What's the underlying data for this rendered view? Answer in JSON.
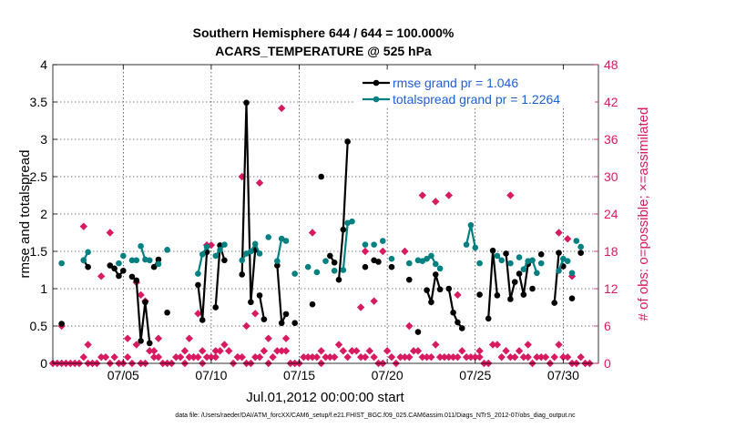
{
  "chart_data": {
    "type": "line",
    "title_line1": "Southern Hemisphere 644 / 644 = 100.000%",
    "title_line2": "ACARS_TEMPERATURE @ 525 hPa",
    "xlabel": "Jul.01,2012 00:00:00 start",
    "ylabel_left": "rmse and totalspread",
    "ylabel_right": "# of obs: o=possible; ×=assimilated",
    "footnote": "data file: /Users/raeder/DAI/ATM_forcXX/CAM6_setup/f.e21.FHIST_BGC.f09_025.CAM6assim.011/Diags_NTrS_2012-07/obs_diag_output.nc",
    "xlim": [
      1,
      32
    ],
    "ylim_left": [
      0,
      4
    ],
    "ylim_right": [
      0,
      48
    ],
    "x_ticks": [
      5,
      10,
      15,
      20,
      25,
      30
    ],
    "x_tick_labels": [
      "07/05",
      "07/10",
      "07/15",
      "07/20",
      "07/25",
      "07/30"
    ],
    "y_left_ticks": [
      "0",
      "0.5",
      "1",
      "1.5",
      "2",
      "2.5",
      "3",
      "3.5",
      "4"
    ],
    "y_right_ticks": [
      "0",
      "6",
      "12",
      "18",
      "24",
      "30",
      "36",
      "42",
      "48"
    ],
    "grid": true,
    "legend_position": "top-right",
    "colors": {
      "rmse": "#000000",
      "spread": "#008080",
      "obs": "#d81b60",
      "legend_text": "#1f5fd6",
      "right_axis": "#d81b60"
    },
    "series": [
      {
        "name": "rmse grand pr = 1.046",
        "key": "rmse",
        "segments": [
          [
            [
              1.5,
              0.53
            ]
          ],
          [
            [
              2.75,
              1.38
            ],
            [
              3.0,
              1.29
            ]
          ],
          [
            [
              4.25,
              1.31
            ],
            [
              4.5,
              1.27
            ],
            [
              4.75,
              1.17
            ],
            [
              5.0,
              1.24
            ]
          ],
          [
            [
              5.5,
              1.16
            ],
            [
              5.75,
              1.11
            ],
            [
              6.0,
              0.3
            ],
            [
              6.25,
              0.82
            ],
            [
              6.5,
              0.27
            ]
          ],
          [
            [
              6.75,
              1.29
            ],
            [
              7.0,
              1.39
            ]
          ],
          [
            [
              7.5,
              0.68
            ]
          ],
          [
            [
              9.25,
              1.05
            ],
            [
              9.5,
              0.58
            ],
            [
              9.75,
              1.49
            ]
          ],
          [
            [
              10.25,
              0.75
            ],
            [
              10.5,
              1.58
            ],
            [
              10.75,
              1.38
            ]
          ],
          [
            [
              11.75,
              1.19
            ],
            [
              12.0,
              3.49
            ],
            [
              12.25,
              0.82
            ],
            [
              12.5,
              1.52
            ]
          ],
          [
            [
              12.75,
              0.91
            ],
            [
              13.0,
              0.59
            ]
          ],
          [
            [
              13.75,
              1.31
            ],
            [
              14.0,
              0.54
            ],
            [
              14.25,
              0.66
            ]
          ],
          [
            [
              14.75,
              0.54
            ]
          ],
          [
            [
              15.75,
              0.79
            ]
          ],
          [
            [
              16.25,
              2.5
            ]
          ],
          [
            [
              16.75,
              1.44
            ],
            [
              17.0,
              1.35
            ]
          ],
          [
            [
              17.25,
              1.12
            ],
            [
              17.5,
              1.79
            ],
            [
              17.75,
              2.97
            ]
          ],
          [
            [
              18.75,
              1.29
            ]
          ],
          [
            [
              19.25,
              1.38
            ],
            [
              19.5,
              1.36
            ]
          ],
          [
            [
              20.25,
              1.29
            ]
          ],
          [
            [
              21.25,
              1.12
            ]
          ],
          [
            [
              21.75,
              0.42
            ]
          ],
          [
            [
              22.25,
              0.98
            ],
            [
              22.5,
              0.82
            ],
            [
              22.75,
              1.19
            ],
            [
              23.0,
              0.99
            ]
          ],
          [
            [
              23.5,
              1.0
            ],
            [
              23.75,
              0.68
            ],
            [
              24.0,
              0.55
            ],
            [
              24.25,
              0.47
            ]
          ],
          [
            [
              25.25,
              0.92
            ]
          ],
          [
            [
              25.75,
              0.6
            ],
            [
              26.0,
              1.51
            ],
            [
              26.25,
              0.91
            ]
          ],
          [
            [
              26.75,
              1.47
            ],
            [
              27.0,
              0.86
            ],
            [
              27.25,
              1.09
            ]
          ],
          [
            [
              27.5,
              1.2
            ],
            [
              27.75,
              0.92
            ],
            [
              28.0,
              1.33
            ]
          ],
          [
            [
              28.25,
              1.0
            ]
          ],
          [
            [
              28.75,
              1.46
            ]
          ],
          [
            [
              29.5,
              0.81
            ],
            [
              29.75,
              1.48
            ]
          ],
          [
            [
              30.0,
              1.3
            ]
          ],
          [
            [
              30.5,
              0.87
            ]
          ],
          [
            [
              31.0,
              1.48
            ]
          ]
        ]
      },
      {
        "name": "totalspread grand pr = 1.2264",
        "key": "spread",
        "segments": [
          [
            [
              1.5,
              1.34
            ]
          ],
          [
            [
              2.75,
              1.38
            ],
            [
              3.0,
              1.49
            ]
          ],
          [
            [
              4.75,
              1.34
            ]
          ],
          [
            [
              5.0,
              1.44
            ]
          ],
          [
            [
              5.5,
              1.38
            ],
            [
              5.75,
              1.38
            ]
          ],
          [
            [
              6.0,
              1.57
            ],
            [
              6.25,
              1.39
            ],
            [
              6.5,
              1.38
            ]
          ],
          [
            [
              7.0,
              1.33
            ]
          ],
          [
            [
              7.5,
              1.52
            ]
          ],
          [
            [
              9.25,
              1.2
            ],
            [
              9.5,
              1.46
            ],
            [
              9.75,
              1.56
            ]
          ],
          [
            [
              10.25,
              1.44
            ],
            [
              10.5,
              1.52
            ],
            [
              10.75,
              1.59
            ]
          ],
          [
            [
              11.75,
              1.38
            ],
            [
              12.0,
              1.47
            ],
            [
              12.25,
              1.5
            ],
            [
              12.5,
              1.6
            ],
            [
              12.75,
              1.47
            ]
          ],
          [
            [
              13.25,
              1.69
            ]
          ],
          [
            [
              13.75,
              1.37
            ],
            [
              14.0,
              1.67
            ],
            [
              14.25,
              1.64
            ]
          ],
          [
            [
              14.75,
              1.2
            ]
          ],
          [
            [
              15.5,
              1.29
            ]
          ],
          [
            [
              16.0,
              1.22
            ]
          ],
          [
            [
              16.5,
              1.37
            ]
          ],
          [
            [
              17.0,
              1.24
            ]
          ],
          [
            [
              17.5,
              1.25
            ],
            [
              17.75,
              1.88
            ],
            [
              18.0,
              1.9
            ]
          ],
          [
            [
              18.75,
              1.59
            ]
          ],
          [
            [
              19.25,
              1.59
            ]
          ],
          [
            [
              19.75,
              1.64
            ]
          ],
          [
            [
              20.25,
              1.4
            ]
          ],
          [
            [
              21.25,
              1.34
            ]
          ],
          [
            [
              21.75,
              1.38
            ],
            [
              22.0,
              1.37
            ],
            [
              22.25,
              1.4
            ],
            [
              22.5,
              1.44
            ],
            [
              22.75,
              1.33
            ]
          ],
          [
            [
              23.0,
              1.27
            ]
          ],
          [
            [
              24.5,
              1.59
            ],
            [
              24.75,
              1.85
            ],
            [
              25.0,
              1.55
            ]
          ],
          [
            [
              25.25,
              1.34
            ]
          ],
          [
            [
              26.25,
              1.44
            ],
            [
              26.5,
              1.38
            ]
          ],
          [
            [
              27.0,
              1.34
            ]
          ],
          [
            [
              27.5,
              1.42
            ]
          ],
          [
            [
              27.75,
              1.26
            ],
            [
              28.0,
              1.37
            ],
            [
              28.25,
              1.38
            ],
            [
              28.5,
              1.21
            ]
          ],
          [
            [
              28.75,
              1.34
            ]
          ],
          [
            [
              29.75,
              1.24
            ],
            [
              30.0,
              1.4
            ]
          ],
          [
            [
              30.25,
              1.37
            ]
          ],
          [
            [
              30.5,
              1.21
            ]
          ],
          [
            [
              30.75,
              1.64
            ]
          ],
          [
            [
              31.0,
              1.56
            ]
          ]
        ]
      }
    ],
    "obs_assimilated": [
      [
        1,
        0
      ],
      [
        1.25,
        0
      ],
      [
        1.5,
        0
      ],
      [
        1.75,
        0
      ],
      [
        2.0,
        0
      ],
      [
        2.25,
        0
      ],
      [
        2.5,
        0
      ],
      [
        2.75,
        1
      ],
      [
        3.0,
        0
      ],
      [
        3.25,
        0
      ],
      [
        3.5,
        0
      ],
      [
        3.75,
        1
      ],
      [
        4.0,
        1
      ],
      [
        4.25,
        0
      ],
      [
        4.5,
        1
      ],
      [
        4.75,
        0
      ],
      [
        5.0,
        0
      ],
      [
        5.25,
        1
      ],
      [
        5.5,
        0
      ],
      [
        5.75,
        3
      ],
      [
        6.0,
        0
      ],
      [
        6.25,
        0
      ],
      [
        6.5,
        2
      ],
      [
        6.75,
        1
      ],
      [
        7.0,
        1
      ],
      [
        7.25,
        0
      ],
      [
        7.5,
        0
      ],
      [
        7.75,
        0
      ],
      [
        8.0,
        1
      ],
      [
        8.25,
        1
      ],
      [
        8.5,
        0
      ],
      [
        8.75,
        1
      ],
      [
        9.0,
        1
      ],
      [
        9.25,
        1
      ],
      [
        9.5,
        0
      ],
      [
        9.75,
        1
      ],
      [
        10.0,
        1
      ],
      [
        10.25,
        1
      ],
      [
        10.5,
        2
      ],
      [
        10.75,
        3
      ],
      [
        11.0,
        2
      ],
      [
        11.25,
        0
      ],
      [
        11.5,
        1
      ],
      [
        11.75,
        1
      ],
      [
        12.0,
        0
      ],
      [
        12.25,
        0
      ],
      [
        12.5,
        1
      ],
      [
        12.75,
        1
      ],
      [
        13.0,
        2
      ],
      [
        13.25,
        0
      ],
      [
        13.5,
        1
      ],
      [
        13.75,
        2
      ],
      [
        14.0,
        2
      ],
      [
        14.25,
        2
      ],
      [
        14.5,
        0
      ],
      [
        14.75,
        0
      ],
      [
        15.0,
        0
      ],
      [
        15.25,
        1
      ],
      [
        15.5,
        1
      ],
      [
        15.75,
        1
      ],
      [
        16.0,
        1
      ],
      [
        16.25,
        2
      ],
      [
        16.5,
        1
      ],
      [
        16.75,
        1
      ],
      [
        17.0,
        1
      ],
      [
        17.25,
        3
      ],
      [
        17.5,
        2
      ],
      [
        17.75,
        1
      ],
      [
        18.0,
        2
      ],
      [
        18.25,
        2
      ],
      [
        18.5,
        1
      ],
      [
        18.75,
        1
      ],
      [
        19.0,
        2
      ],
      [
        19.25,
        1
      ],
      [
        19.5,
        0
      ],
      [
        19.75,
        0
      ],
      [
        20.0,
        2
      ],
      [
        20.25,
        1
      ],
      [
        20.5,
        0
      ],
      [
        20.75,
        1
      ],
      [
        21.0,
        1
      ],
      [
        21.25,
        1
      ],
      [
        21.5,
        2
      ],
      [
        21.75,
        2
      ],
      [
        22.0,
        1
      ],
      [
        22.25,
        1
      ],
      [
        22.5,
        1
      ],
      [
        22.75,
        3
      ],
      [
        23.0,
        1
      ],
      [
        23.25,
        1
      ],
      [
        23.5,
        1
      ],
      [
        23.75,
        1
      ],
      [
        24.0,
        1
      ],
      [
        24.25,
        2
      ],
      [
        24.5,
        1
      ],
      [
        24.75,
        1
      ],
      [
        25.0,
        1
      ],
      [
        25.25,
        1
      ],
      [
        25.5,
        0
      ],
      [
        25.75,
        0
      ],
      [
        26.0,
        3
      ],
      [
        26.25,
        3
      ],
      [
        26.5,
        1
      ],
      [
        26.75,
        2
      ],
      [
        27.0,
        1
      ],
      [
        27.25,
        1
      ],
      [
        27.5,
        2
      ],
      [
        27.75,
        1
      ],
      [
        28.0,
        3
      ],
      [
        28.25,
        0
      ],
      [
        28.5,
        1
      ],
      [
        28.75,
        1
      ],
      [
        29.0,
        1
      ],
      [
        29.25,
        0
      ],
      [
        29.5,
        1
      ],
      [
        29.75,
        3
      ],
      [
        30.0,
        1
      ],
      [
        30.25,
        1
      ],
      [
        30.5,
        0
      ],
      [
        30.75,
        0
      ],
      [
        31.0,
        1
      ],
      [
        31.25,
        0
      ],
      [
        31.5,
        0
      ]
    ],
    "obs_possible": [
      [
        1.5,
        6
      ],
      [
        2.75,
        22
      ],
      [
        3.0,
        3
      ],
      [
        3.75,
        14
      ],
      [
        4.25,
        21
      ],
      [
        5.25,
        4
      ],
      [
        5.75,
        13
      ],
      [
        6.0,
        11
      ],
      [
        6.25,
        10
      ],
      [
        6.75,
        2
      ],
      [
        7.0,
        4
      ],
      [
        8.5,
        2
      ],
      [
        8.75,
        4
      ],
      [
        9.0,
        1
      ],
      [
        9.25,
        8
      ],
      [
        9.5,
        2
      ],
      [
        9.75,
        19
      ],
      [
        10.0,
        19
      ],
      [
        10.25,
        2
      ],
      [
        11.5,
        1
      ],
      [
        11.75,
        30
      ],
      [
        12.0,
        6
      ],
      [
        12.5,
        8
      ],
      [
        12.75,
        29
      ],
      [
        13.25,
        4
      ],
      [
        14.0,
        41
      ],
      [
        14.25,
        4
      ],
      [
        15.75,
        21
      ],
      [
        16.25,
        0
      ],
      [
        18.0,
        2
      ],
      [
        18.5,
        9
      ],
      [
        18.75,
        18
      ],
      [
        19.25,
        10
      ],
      [
        19.75,
        18
      ],
      [
        21.0,
        18
      ],
      [
        21.25,
        6
      ],
      [
        22.0,
        27
      ],
      [
        22.75,
        26
      ],
      [
        23.5,
        27
      ],
      [
        24.0,
        11
      ],
      [
        25.25,
        2
      ],
      [
        27.0,
        27
      ],
      [
        28.0,
        1
      ],
      [
        29.75,
        21
      ],
      [
        30.25,
        20
      ],
      [
        30.5,
        14
      ]
    ]
  }
}
